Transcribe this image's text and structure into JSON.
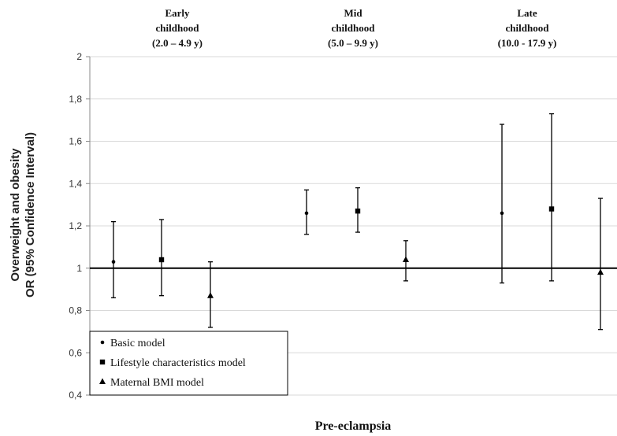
{
  "chart_data": {
    "type": "scatter",
    "xlabel": "Pre-eclampsia",
    "ylabel_lines": [
      "Overweight and obesity",
      "OR (95% Confidence Interval)"
    ],
    "ylim": [
      0.4,
      2
    ],
    "yticks": [
      "0,4",
      "0,6",
      "0,8",
      "1",
      "1,2",
      "1,4",
      "1,6",
      "1,8",
      "2"
    ],
    "reference_line": 1,
    "grid": true,
    "legend_position": "bottom-left",
    "groups": [
      {
        "lines": [
          "Early",
          "childhood",
          "(2.0 – 4.9 y)"
        ]
      },
      {
        "lines": [
          "Mid",
          "childhood",
          "(5.0 – 9.9 y)"
        ]
      },
      {
        "lines": [
          "Late",
          "childhood",
          "(10.0 - 17.9 y)"
        ]
      }
    ],
    "series": [
      {
        "name": "Basic model",
        "marker": "circle",
        "or": [
          1.03,
          1.26,
          1.26
        ],
        "ci_low": [
          0.86,
          1.16,
          0.93
        ],
        "ci_high": [
          1.22,
          1.37,
          1.68
        ]
      },
      {
        "name": "Lifestyle characteristics model",
        "marker": "square",
        "or": [
          1.04,
          1.27,
          1.28
        ],
        "ci_low": [
          0.87,
          1.17,
          0.94
        ],
        "ci_high": [
          1.23,
          1.38,
          1.73
        ]
      },
      {
        "name": "Maternal BMI model",
        "marker": "triangle",
        "or": [
          0.87,
          1.04,
          0.98
        ],
        "ci_low": [
          0.72,
          0.94,
          0.71
        ],
        "ci_high": [
          1.03,
          1.13,
          1.33
        ]
      }
    ]
  }
}
